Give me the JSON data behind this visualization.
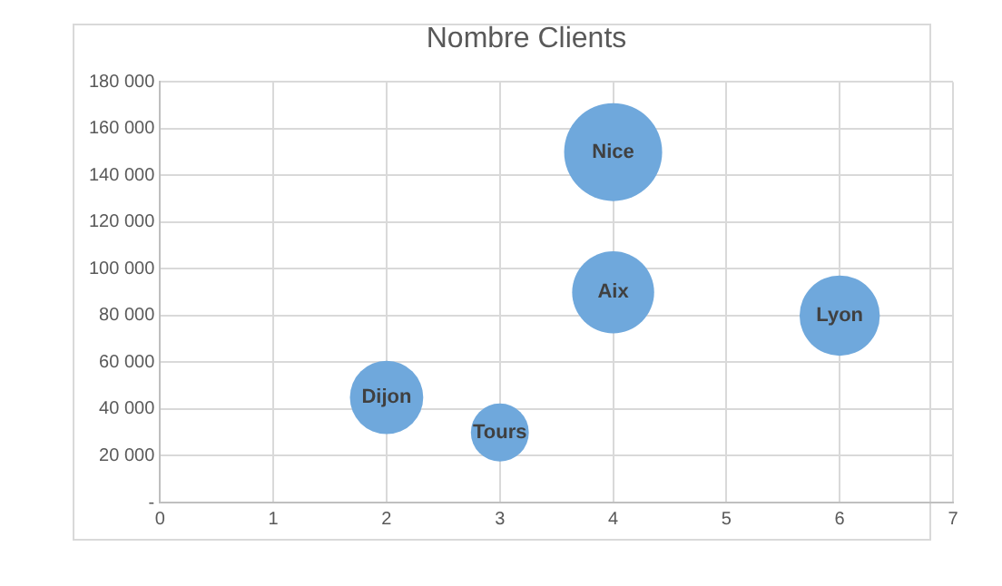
{
  "chart_data": {
    "type": "bubble",
    "title": "Nombre Clients",
    "x": [
      2,
      3,
      4,
      4,
      6
    ],
    "values": [
      45000,
      30000,
      150000,
      90000,
      80000
    ],
    "sizes": [
      0.56,
      0.35,
      1,
      0.7,
      0.67
    ],
    "color": "#6fa8dc",
    "xlim": [
      0,
      7
    ],
    "xticks": [
      0,
      1,
      2,
      3,
      4,
      5,
      6,
      7
    ],
    "ylim": [
      0,
      180000
    ],
    "yticks": [
      {
        "value": 0,
        "label": "-"
      },
      {
        "value": 20000,
        "label": "20 000"
      },
      {
        "value": 40000,
        "label": "40 000"
      },
      {
        "value": 60000,
        "label": "60 000"
      },
      {
        "value": 80000,
        "label": "80 000"
      },
      {
        "value": 100000,
        "label": "100 000"
      },
      {
        "value": 120000,
        "label": "120 000"
      },
      {
        "value": 140000,
        "label": "140 000"
      },
      {
        "value": 160000,
        "label": "160 000"
      },
      {
        "value": 180000,
        "label": "180 000"
      }
    ],
    "annotations": [
      {
        "text": "Dijon",
        "x": 2,
        "y": 45000
      },
      {
        "text": "Tours",
        "x": 3,
        "y": 30000
      },
      {
        "text": "Nice",
        "x": 4,
        "y": 150000
      },
      {
        "text": "Aix",
        "x": 4,
        "y": 90000
      },
      {
        "text": "Lyon",
        "x": 6,
        "y": 80000
      }
    ],
    "grid": true,
    "legend": false
  }
}
